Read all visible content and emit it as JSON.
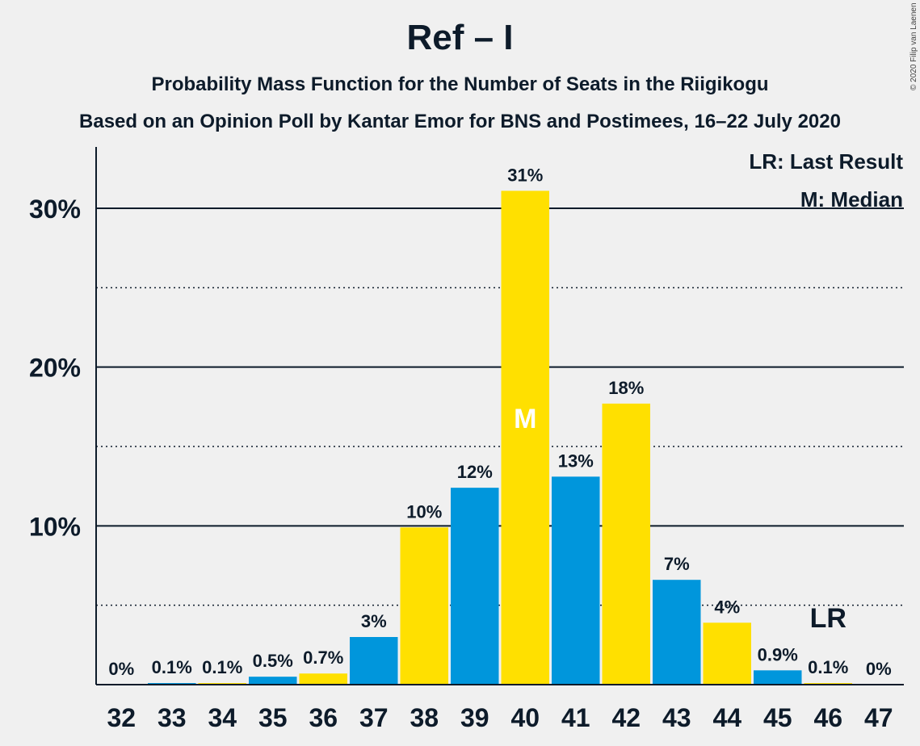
{
  "chart_data": {
    "type": "bar",
    "title": "Ref – I",
    "subtitle": "Probability Mass Function for the Number of Seats in the Riigikogu",
    "subtitle2": "Based on an Opinion Poll by Kantar Emor for BNS and Postimees, 16–22 July 2020",
    "copyright": "© 2020 Filip van Laenen",
    "categories": [
      "32",
      "33",
      "34",
      "35",
      "36",
      "37",
      "38",
      "39",
      "40",
      "41",
      "42",
      "43",
      "44",
      "45",
      "46",
      "47"
    ],
    "values": [
      0,
      0.1,
      0.1,
      0.5,
      0.7,
      3.0,
      9.9,
      12.4,
      31.1,
      13.1,
      17.7,
      6.6,
      3.9,
      0.9,
      0.1,
      0
    ],
    "labels": [
      "0%",
      "0.1%",
      "0.1%",
      "0.5%",
      "0.7%",
      "3%",
      "10%",
      "12%",
      "31%",
      "13%",
      "18%",
      "7%",
      "4%",
      "0.9%",
      "0.1%",
      "0%"
    ],
    "bar_colors": [
      "#ffe000",
      "#0096dc",
      "#ffe000",
      "#0096dc",
      "#ffe000",
      "#0096dc",
      "#ffe000",
      "#0096dc",
      "#ffe000",
      "#0096dc",
      "#ffe000",
      "#0096dc",
      "#ffe000",
      "#0096dc",
      "#ffe000",
      "#0096dc"
    ],
    "ylim": [
      0,
      34
    ],
    "yticks": [
      10,
      20,
      30
    ],
    "ytick_labels": [
      "10%",
      "20%",
      "30%"
    ],
    "minor_gridlines": [
      5,
      15,
      25
    ],
    "median_category": "40",
    "median_marker": "M",
    "last_result_category": "46",
    "last_result_marker": "LR",
    "legend": [
      "LR: Last Result",
      "M: Median"
    ],
    "legend_position": "top-right",
    "grid": true
  }
}
